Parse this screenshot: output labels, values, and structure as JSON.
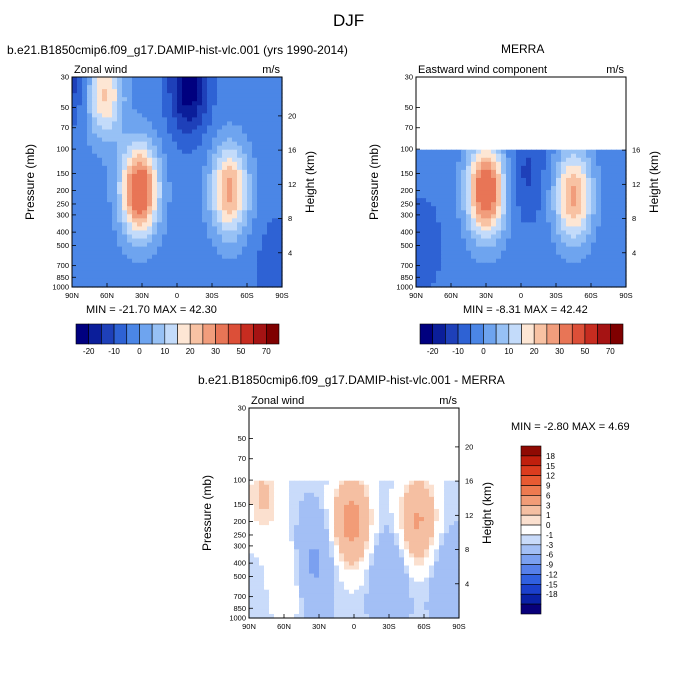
{
  "figure": {
    "title": "DJF"
  },
  "colors": {
    "abs_scale": [
      "#00007f",
      "#0b1e9a",
      "#1e40b9",
      "#2e62d4",
      "#4b86e6",
      "#6ea4ef",
      "#97c1f5",
      "#c3dbfa",
      "#fde6d4",
      "#f8c2a3",
      "#f19d7c",
      "#e87556",
      "#dc4f38",
      "#c72c20",
      "#a51313",
      "#7f0000"
    ],
    "diff_scale": [
      "#08007a",
      "#0a21a6",
      "#1b40cc",
      "#3060e0",
      "#5680ea",
      "#7ba0f0",
      "#a3bff5",
      "#c9dbfa",
      "#ffffff",
      "#fbe0cf",
      "#f5bfa2",
      "#f29c77",
      "#ee7a50",
      "#e85a32",
      "#db3c1e",
      "#c01f0d",
      "#8f0a03"
    ]
  },
  "chart_data": [
    {
      "type": "heatmap",
      "title": "b.e21.B1850cmip6.f09_g17.DAMIP-hist-vlc.001 (yrs 1990-2014)",
      "subtitle_left": "Zonal wind",
      "units": "m/s",
      "xlabel": "",
      "ylabel": "Pressure (mb)",
      "ylabel_right": "Height (km)",
      "x_tick_labels": [
        "90N",
        "60N",
        "30N",
        "0",
        "30S",
        "60S",
        "90S"
      ],
      "y_tick_labels": [
        "30",
        "50",
        "70",
        "100",
        "150",
        "200",
        "250",
        "300",
        "400",
        "500",
        "700",
        "850",
        "1000"
      ],
      "y_right_tick_labels": [
        "20",
        "16",
        "12",
        "8",
        "4"
      ],
      "stats": "MIN = -21.70  MAX =  42.30",
      "features": [
        {
          "lat": 62,
          "p": 40,
          "value": 24
        },
        {
          "lat": 32,
          "p": 200,
          "value": 42
        },
        {
          "lat": -45,
          "p": 200,
          "value": 30
        },
        {
          "lat": -10,
          "p": 35,
          "value": -21
        },
        {
          "lat": 90,
          "p": 30,
          "value": -10
        },
        {
          "lat": -85,
          "p": 700,
          "value": -6
        }
      ]
    },
    {
      "type": "heatmap",
      "title": "MERRA",
      "subtitle_left": "Eastward wind component",
      "units": "m/s",
      "xlabel": "",
      "ylabel": "Pressure (mb)",
      "ylabel_right": "Height (km)",
      "x_tick_labels": [
        "90N",
        "60N",
        "30N",
        "0",
        "30S",
        "60S",
        "90S"
      ],
      "y_tick_labels": [
        "30",
        "50",
        "70",
        "100",
        "150",
        "200",
        "250",
        "300",
        "400",
        "500",
        "700",
        "850",
        "1000"
      ],
      "y_right_tick_labels": [
        "16",
        "12",
        "8",
        "4"
      ],
      "stats": "MIN =  -8.31  MAX =  42.42",
      "features": [
        {
          "lat": 30,
          "p": 200,
          "value": 42
        },
        {
          "lat": -45,
          "p": 220,
          "value": 30
        },
        {
          "lat": -5,
          "p": 150,
          "value": -8
        },
        {
          "lat": 85,
          "p": 500,
          "value": -6
        }
      ]
    },
    {
      "type": "heatmap",
      "title": "b.e21.B1850cmip6.f09_g17.DAMIP-hist-vlc.001 - MERRA",
      "subtitle_left": "Zonal wind",
      "units": "m/s",
      "xlabel": "",
      "ylabel": "Pressure (mb)",
      "ylabel_right": "Height (km)",
      "x_tick_labels": [
        "90N",
        "60N",
        "30N",
        "0",
        "30S",
        "60S",
        "90S"
      ],
      "y_tick_labels": [
        "30",
        "50",
        "70",
        "100",
        "150",
        "200",
        "250",
        "300",
        "400",
        "500",
        "700",
        "850",
        "1000"
      ],
      "y_right_tick_labels": [
        "20",
        "16",
        "12",
        "8",
        "4"
      ],
      "stats": "MIN =  -2.80  MAX =   4.69",
      "features": [
        {
          "lat": 2,
          "p": 200,
          "value": 4.7
        },
        {
          "lat": -55,
          "p": 200,
          "value": 4
        },
        {
          "lat": 78,
          "p": 130,
          "value": 2
        },
        {
          "lat": 55,
          "p": 500,
          "value": 1.5
        },
        {
          "lat": 35,
          "p": 400,
          "value": -2.8
        },
        {
          "lat": -30,
          "p": 500,
          "value": -2
        },
        {
          "lat": -80,
          "p": 500,
          "value": -1.5
        }
      ]
    }
  ],
  "colorbar_abs": {
    "labels": [
      "-20",
      "-10",
      "0",
      "10",
      "20",
      "30",
      "50",
      "70"
    ]
  },
  "colorbar_diff": {
    "labels": [
      "18",
      "15",
      "12",
      "9",
      "6",
      "3",
      "1",
      "0",
      "-1",
      "-3",
      "-6",
      "-9",
      "-12",
      "-15",
      "-18"
    ]
  }
}
